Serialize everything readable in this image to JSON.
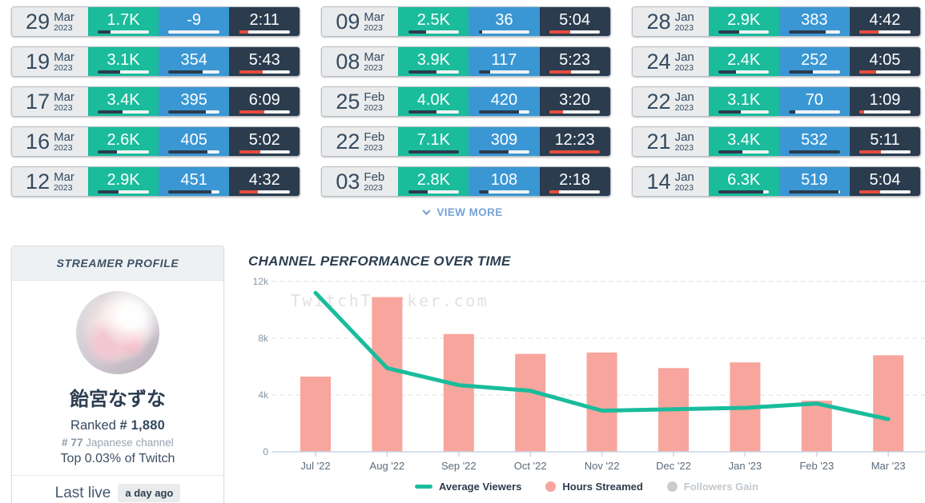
{
  "colors": {
    "green": "#1abc9c",
    "blue": "#3a97d4",
    "dark": "#2b3c4e",
    "red": "#e74c3c",
    "pink_bar": "#f8a59d",
    "teal_line": "#1abc9c",
    "axis": "#c8d6e5",
    "grid": "#dcdcdc",
    "tick_text": "#8596a6",
    "xlabel_text": "#5b6b7c"
  },
  "stats_columns": [
    {
      "cards": [
        {
          "day": "29",
          "month": "Mar",
          "year": "2023",
          "viewers": "1.7K",
          "viewers_fill": 24,
          "followers": "-9",
          "followers_fill": 0,
          "duration": "2:11",
          "duration_fill": 18
        },
        {
          "day": "19",
          "month": "Mar",
          "year": "2023",
          "viewers": "3.1K",
          "viewers_fill": 44,
          "followers": "354",
          "followers_fill": 67,
          "duration": "5:43",
          "duration_fill": 46
        },
        {
          "day": "17",
          "month": "Mar",
          "year": "2023",
          "viewers": "3.4K",
          "viewers_fill": 48,
          "followers": "395",
          "followers_fill": 74,
          "duration": "6:09",
          "duration_fill": 50
        },
        {
          "day": "16",
          "month": "Mar",
          "year": "2023",
          "viewers": "2.6K",
          "viewers_fill": 37,
          "followers": "405",
          "followers_fill": 76,
          "duration": "5:02",
          "duration_fill": 41
        },
        {
          "day": "12",
          "month": "Mar",
          "year": "2023",
          "viewers": "2.9K",
          "viewers_fill": 41,
          "followers": "451",
          "followers_fill": 85,
          "duration": "4:32",
          "duration_fill": 37
        }
      ]
    },
    {
      "cards": [
        {
          "day": "09",
          "month": "Mar",
          "year": "2023",
          "viewers": "2.5K",
          "viewers_fill": 35,
          "followers": "36",
          "followers_fill": 7,
          "duration": "5:04",
          "duration_fill": 41
        },
        {
          "day": "08",
          "month": "Mar",
          "year": "2023",
          "viewers": "3.9K",
          "viewers_fill": 55,
          "followers": "117",
          "followers_fill": 22,
          "duration": "5:23",
          "duration_fill": 43
        },
        {
          "day": "25",
          "month": "Feb",
          "year": "2023",
          "viewers": "4.0K",
          "viewers_fill": 56,
          "followers": "420",
          "followers_fill": 79,
          "duration": "3:20",
          "duration_fill": 27
        },
        {
          "day": "22",
          "month": "Feb",
          "year": "2023",
          "viewers": "7.1K",
          "viewers_fill": 100,
          "followers": "309",
          "followers_fill": 58,
          "duration": "12:23",
          "duration_fill": 100
        },
        {
          "day": "03",
          "month": "Feb",
          "year": "2023",
          "viewers": "2.8K",
          "viewers_fill": 39,
          "followers": "108",
          "followers_fill": 20,
          "duration": "2:18",
          "duration_fill": 19
        }
      ]
    },
    {
      "cards": [
        {
          "day": "28",
          "month": "Jan",
          "year": "2023",
          "viewers": "2.9K",
          "viewers_fill": 41,
          "followers": "383",
          "followers_fill": 72,
          "duration": "4:42",
          "duration_fill": 38
        },
        {
          "day": "24",
          "month": "Jan",
          "year": "2023",
          "viewers": "2.4K",
          "viewers_fill": 34,
          "followers": "252",
          "followers_fill": 47,
          "duration": "4:05",
          "duration_fill": 33
        },
        {
          "day": "22",
          "month": "Jan",
          "year": "2023",
          "viewers": "3.1K",
          "viewers_fill": 44,
          "followers": "70",
          "followers_fill": 13,
          "duration": "1:09",
          "duration_fill": 9
        },
        {
          "day": "21",
          "month": "Jan",
          "year": "2023",
          "viewers": "3.4K",
          "viewers_fill": 48,
          "followers": "532",
          "followers_fill": 100,
          "duration": "5:11",
          "duration_fill": 42
        },
        {
          "day": "14",
          "month": "Jan",
          "year": "2023",
          "viewers": "6.3K",
          "viewers_fill": 89,
          "followers": "519",
          "followers_fill": 98,
          "duration": "5:04",
          "duration_fill": 41
        }
      ]
    }
  ],
  "view_more": {
    "label": "VIEW MORE"
  },
  "profile": {
    "header": "STREAMER PROFILE",
    "name": "飴宮なずな",
    "ranked_label": "Ranked",
    "ranked_value": "# 1,880",
    "language_rank": "# 77",
    "language_rank_suffix": "Japanese channel",
    "top_percent": "Top 0.03% of Twitch",
    "last_live_label": "Last live",
    "last_live_value": "a day ago"
  },
  "chart_data": {
    "type": "bar+line",
    "title": "CHANNEL PERFORMANCE OVER TIME",
    "watermark": "TwitchTracker.com",
    "categories": [
      "Jul '22",
      "Aug '22",
      "Sep '22",
      "Oct '22",
      "Nov '22",
      "Dec '22",
      "Jan '23",
      "Feb '23",
      "Mar '23"
    ],
    "series": [
      {
        "name": "Average Viewers",
        "kind": "line",
        "color": "#1abc9c",
        "enabled": true,
        "values": [
          11200,
          5900,
          4700,
          4300,
          2900,
          3000,
          3100,
          3400,
          2300
        ]
      },
      {
        "name": "Hours Streamed",
        "kind": "bar",
        "color": "#f8a59d",
        "enabled": true,
        "values": [
          5300,
          10900,
          8300,
          6900,
          7000,
          5900,
          6300,
          3600,
          6800
        ]
      },
      {
        "name": "Followers Gain",
        "kind": "dot",
        "color": "#cccccc",
        "enabled": false,
        "values": null
      }
    ],
    "ylim": [
      0,
      12000
    ],
    "yticks": [
      {
        "v": 0,
        "label": "0"
      },
      {
        "v": 4000,
        "label": "4k"
      },
      {
        "v": 8000,
        "label": "8k"
      },
      {
        "v": 12000,
        "label": "12k"
      }
    ],
    "grid": "dashed-horizontal",
    "legend_position": "bottom"
  }
}
